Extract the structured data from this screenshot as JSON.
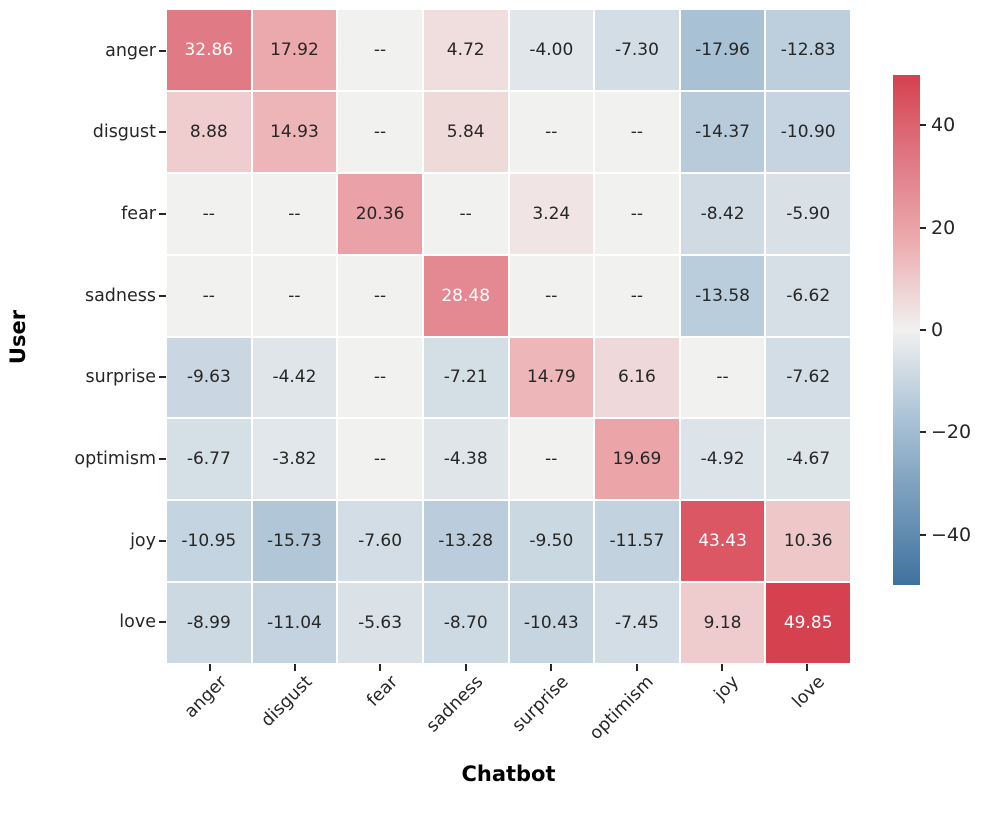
{
  "chart_data": {
    "type": "heatmap",
    "title": "",
    "xlabel": "Chatbot",
    "ylabel": "User",
    "x_categories": [
      "anger",
      "disgust",
      "fear",
      "sadness",
      "surprise",
      "optimism",
      "joy",
      "love"
    ],
    "y_categories": [
      "anger",
      "disgust",
      "fear",
      "sadness",
      "surprise",
      "optimism",
      "joy",
      "love"
    ],
    "missing_marker": "--",
    "values": [
      [
        32.86,
        17.92,
        null,
        4.72,
        -4.0,
        -7.3,
        -17.96,
        -12.83
      ],
      [
        8.88,
        14.93,
        null,
        5.84,
        null,
        null,
        -14.37,
        -10.9
      ],
      [
        null,
        null,
        20.36,
        null,
        3.24,
        null,
        -8.42,
        -5.9
      ],
      [
        null,
        null,
        null,
        28.48,
        null,
        null,
        -13.58,
        -6.62
      ],
      [
        -9.63,
        -4.42,
        null,
        -7.21,
        14.79,
        6.16,
        null,
        -7.62
      ],
      [
        -6.77,
        -3.82,
        null,
        -4.38,
        null,
        19.69,
        -4.92,
        -4.67
      ],
      [
        -10.95,
        -15.73,
        -7.6,
        -13.28,
        -9.5,
        -11.57,
        43.43,
        10.36
      ],
      [
        -8.99,
        -11.04,
        -5.63,
        -8.7,
        -10.43,
        -7.45,
        9.18,
        49.85
      ]
    ],
    "vmin": -49.85,
    "vmax": 49.85,
    "value_decimals": 2,
    "colorbar_ticks": [
      {
        "value": 40,
        "label": "40"
      },
      {
        "value": 20,
        "label": "20"
      },
      {
        "value": 0,
        "label": "0"
      },
      {
        "value": -20,
        "label": "−20"
      },
      {
        "value": -40,
        "label": "−40"
      }
    ],
    "legend_position": "right-colorbar",
    "grid": false,
    "colors": {
      "positive_max": "#d6414f",
      "positive_mid2": "#e07a85",
      "positive_mid1": "#eca9ad",
      "center": "#f1f1f0",
      "negative_mid": "#a8c1d5",
      "negative_max": "#40729f",
      "annotation_dark": "#262626",
      "annotation_light": "#ffffff",
      "background": "#ffffff"
    }
  }
}
